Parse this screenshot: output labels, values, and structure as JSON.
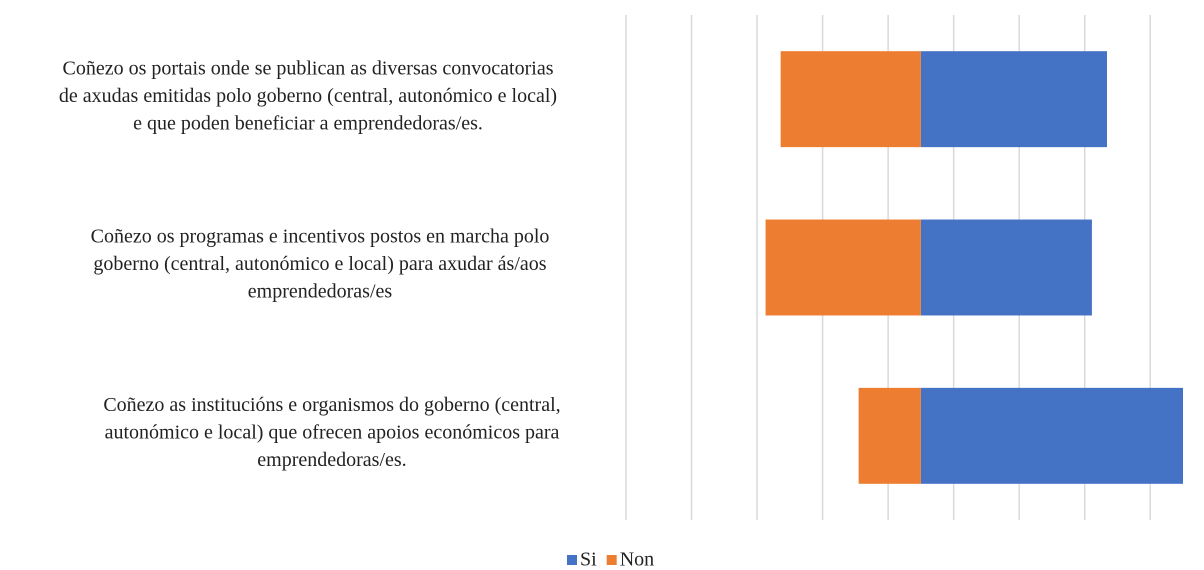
{
  "chart_data": {
    "type": "diverging-bar",
    "categories": [
      [
        "Coñezo os portais onde se publican as diversas convocatorias",
        "de axudas emitidas polo goberno (central, autonómico e local)",
        "e que poden beneficiar a emprendedoras/es."
      ],
      [
        "Coñezo os programas e incentivos postos en marcha polo",
        "goberno (central, autonómico e local) para axudar ás/aos",
        "emprendedoras/es"
      ],
      [
        "Coñezo as institucións e organismos do goberno (central,",
        "autonómico e local) que ofrecen apoios económicos para",
        "emprendedoras/es."
      ]
    ],
    "series": [
      {
        "name": "Si",
        "color": "#4472c4",
        "values": [
          28.4,
          26.1,
          40
        ]
      },
      {
        "name": "Non",
        "color": "#ed7d31",
        "values": [
          -21.4,
          -23.7,
          -9.5
        ]
      }
    ],
    "xlim": [
      -45,
      40
    ],
    "xticks": [
      -45,
      -35,
      -25,
      -15,
      -5,
      5,
      15,
      25,
      35
    ],
    "grid": true,
    "legend": "bottom"
  }
}
